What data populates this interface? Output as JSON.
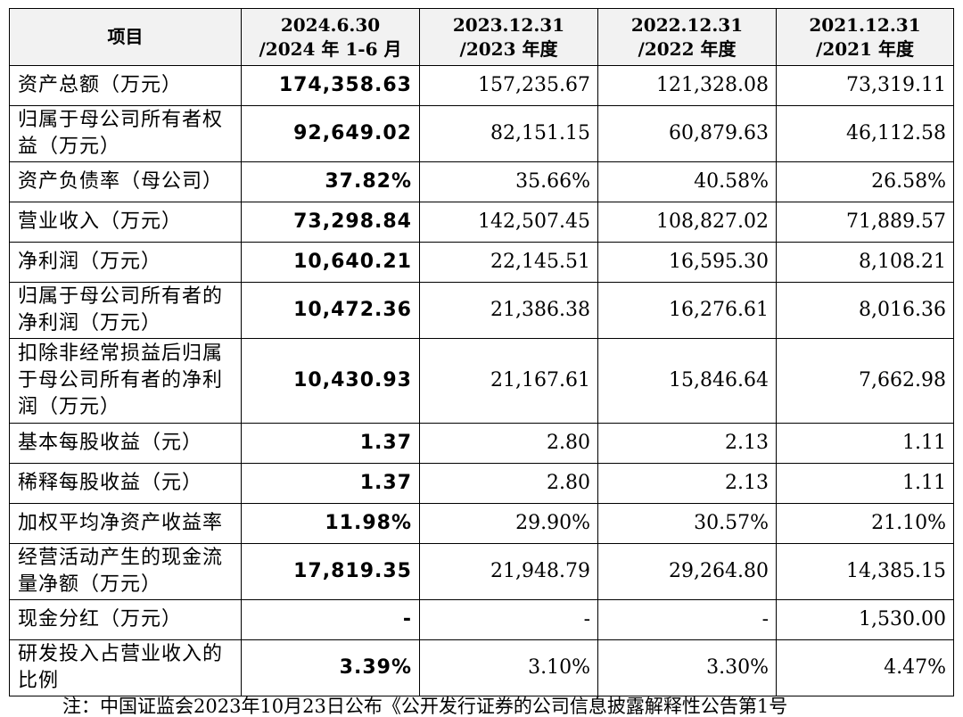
{
  "table": {
    "headers": [
      {
        "line1": "项目",
        "line2": ""
      },
      {
        "line1": "2024.6.30",
        "line2": "/2024 年 1-6 月"
      },
      {
        "line1": "2023.12.31",
        "line2": "/2023 年度"
      },
      {
        "line1": "2022.12.31",
        "line2": "/2022 年度"
      },
      {
        "line1": "2021.12.31",
        "line2": "/2021 年度"
      }
    ],
    "rows": [
      {
        "label": "资产总额（万元）",
        "values": [
          "174,358.63",
          "157,235.67",
          "121,328.08",
          "73,319.11"
        ]
      },
      {
        "label": "归属于母公司所有者权益（万元）",
        "values": [
          "92,649.02",
          "82,151.15",
          "60,879.63",
          "46,112.58"
        ]
      },
      {
        "label": "资产负债率（母公司）",
        "values": [
          "37.82%",
          "35.66%",
          "40.58%",
          "26.58%"
        ]
      },
      {
        "label": "营业收入（万元）",
        "values": [
          "73,298.84",
          "142,507.45",
          "108,827.02",
          "71,889.57"
        ]
      },
      {
        "label": "净利润（万元）",
        "values": [
          "10,640.21",
          "22,145.51",
          "16,595.30",
          "8,108.21"
        ]
      },
      {
        "label": "归属于母公司所有者的净利润（万元）",
        "values": [
          "10,472.36",
          "21,386.38",
          "16,276.61",
          "8,016.36"
        ]
      },
      {
        "label": "扣除非经常损益后归属于母公司所有者的净利润（万元）",
        "values": [
          "10,430.93",
          "21,167.61",
          "15,846.64",
          "7,662.98"
        ]
      },
      {
        "label": "基本每股收益（元）",
        "values": [
          "1.37",
          "2.80",
          "2.13",
          "1.11"
        ]
      },
      {
        "label": "稀释每股收益（元）",
        "values": [
          "1.37",
          "2.80",
          "2.13",
          "1.11"
        ]
      },
      {
        "label": "加权平均净资产收益率",
        "values": [
          "11.98%",
          "29.90%",
          "30.57%",
          "21.10%"
        ]
      },
      {
        "label": "经营活动产生的现金流量净额（万元）",
        "values": [
          "17,819.35",
          "21,948.79",
          "29,264.80",
          "14,385.15"
        ]
      },
      {
        "label": "现金分红（万元）",
        "values": [
          "-",
          "-",
          "-",
          "1,530.00"
        ]
      },
      {
        "label": "研发投入占营业收入的比例",
        "values": [
          "3.39%",
          "3.10%",
          "3.30%",
          "4.47%"
        ]
      }
    ]
  },
  "footnote": "注：中国证监会2023年10月23日公布《公开发行证券的公司信息披露解释性公告第1号"
}
